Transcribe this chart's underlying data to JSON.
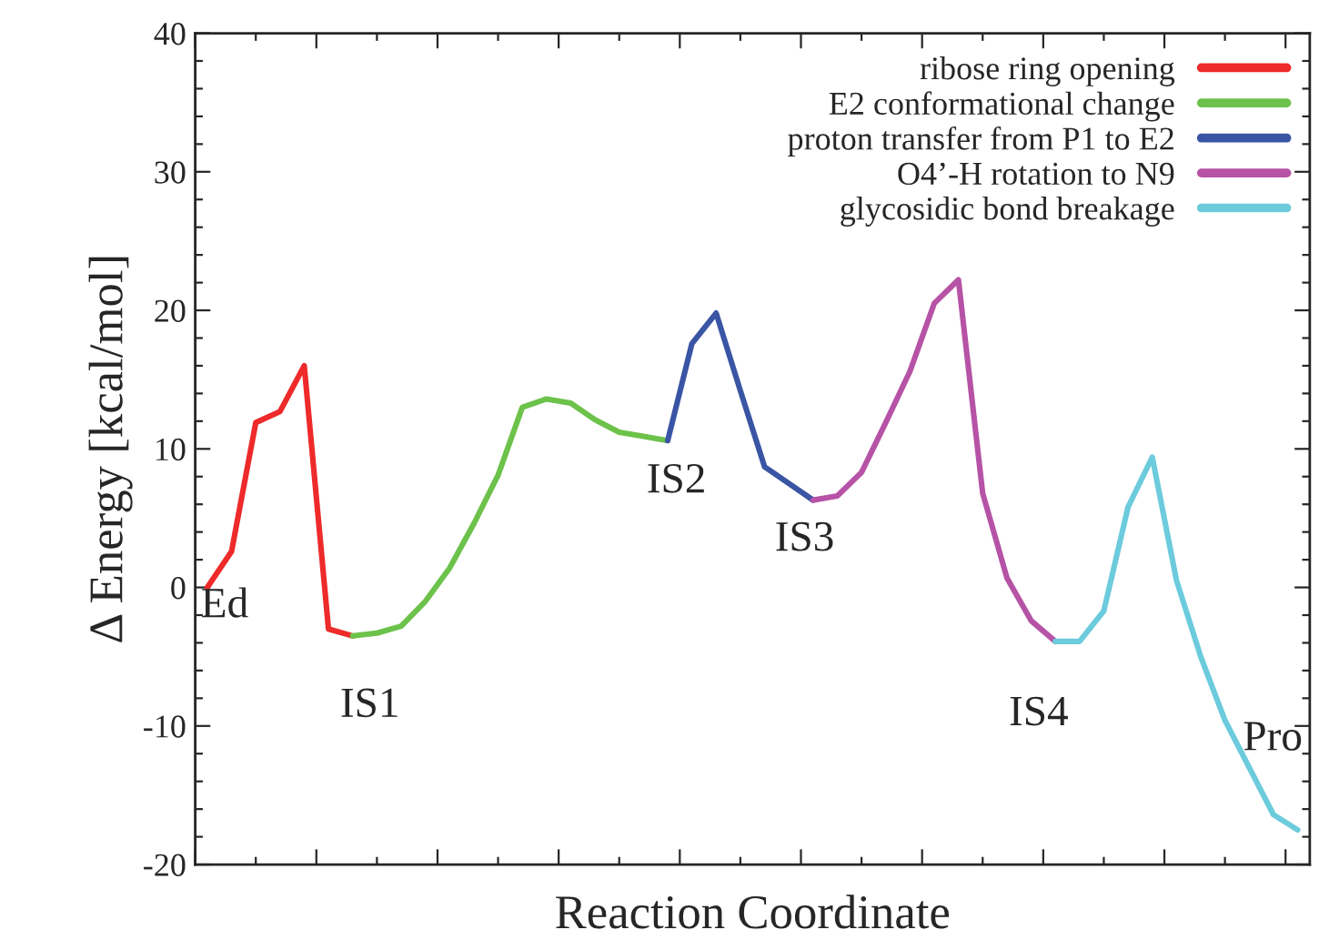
{
  "chart_data": {
    "type": "line",
    "xlabel": "Reaction Coordinate",
    "ylabel": "Δ Energy [kcal/mol]",
    "categories": [
      null,
      null,
      null,
      null,
      null,
      null,
      null,
      null,
      null,
      null,
      null,
      null,
      null,
      null,
      null,
      null,
      null,
      null,
      null,
      null,
      null,
      null,
      null,
      null,
      null,
      null,
      null,
      null,
      null,
      null,
      null,
      null,
      null,
      null,
      null,
      null,
      null,
      null,
      null,
      null,
      null,
      null,
      null,
      null,
      null,
      null
    ],
    "ylim": [
      -20,
      40
    ],
    "yticks": [
      -20,
      -10,
      0,
      10,
      20,
      30,
      40
    ],
    "grid": false,
    "legend": "top right",
    "marker": "none",
    "line_style": "solid",
    "series": [
      {
        "name": "ribose ring opening",
        "color": "#ee2a2a",
        "values": [
          0,
          2.6,
          11.9,
          12.7,
          16.0,
          -3.0,
          -3.5,
          null,
          null,
          null,
          null,
          null,
          null,
          null,
          null,
          null,
          null,
          null,
          null,
          null,
          null,
          null,
          null,
          null,
          null,
          null,
          null,
          null,
          null,
          null,
          null,
          null,
          null,
          null,
          null,
          null,
          null,
          null,
          null,
          null,
          null,
          null,
          null,
          null,
          null,
          null
        ]
      },
      {
        "name": "E2 conformational change",
        "color": "#6cc24a",
        "values": [
          null,
          null,
          null,
          null,
          null,
          null,
          -3.5,
          -3.3,
          -2.8,
          -1.0,
          1.4,
          4.6,
          8.1,
          13.0,
          13.6,
          13.3,
          12.1,
          11.2,
          10.9,
          10.6,
          null,
          null,
          null,
          null,
          null,
          null,
          null,
          null,
          null,
          null,
          null,
          null,
          null,
          null,
          null,
          null,
          null,
          null,
          null,
          null,
          null,
          null,
          null,
          null,
          null,
          null
        ]
      },
      {
        "name": "proton transfer from P1 to E2",
        "color": "#3a55a4",
        "values": [
          null,
          null,
          null,
          null,
          null,
          null,
          null,
          null,
          null,
          null,
          null,
          null,
          null,
          null,
          null,
          null,
          null,
          null,
          null,
          10.6,
          17.6,
          19.8,
          14.2,
          8.7,
          7.5,
          6.3,
          null,
          null,
          null,
          null,
          null,
          null,
          null,
          null,
          null,
          null,
          null,
          null,
          null,
          null,
          null,
          null,
          null,
          null,
          null,
          null
        ]
      },
      {
        "name": "O4’-H rotation to N9",
        "color": "#b653a6",
        "values": [
          null,
          null,
          null,
          null,
          null,
          null,
          null,
          null,
          null,
          null,
          null,
          null,
          null,
          null,
          null,
          null,
          null,
          null,
          null,
          null,
          null,
          null,
          null,
          null,
          null,
          6.3,
          6.6,
          8.3,
          11.9,
          15.6,
          20.5,
          22.2,
          6.8,
          0.7,
          -2.4,
          -3.9,
          null,
          null,
          null,
          null,
          null,
          null,
          null,
          null,
          null,
          null
        ]
      },
      {
        "name": "glycosidic bond breakage",
        "color": "#6ccbdc",
        "values": [
          null,
          null,
          null,
          null,
          null,
          null,
          null,
          null,
          null,
          null,
          null,
          null,
          null,
          null,
          null,
          null,
          null,
          null,
          null,
          null,
          null,
          null,
          null,
          null,
          null,
          null,
          null,
          null,
          null,
          null,
          null,
          null,
          null,
          null,
          null,
          -3.9,
          -3.9,
          -1.7,
          5.8,
          9.4,
          0.5,
          -5.0,
          -9.6,
          -13.0,
          -16.4,
          -17.5
        ]
      }
    ],
    "annotations": [
      "Ed",
      "IS1",
      "IS2",
      "IS3",
      "IS4",
      "Pro"
    ]
  }
}
